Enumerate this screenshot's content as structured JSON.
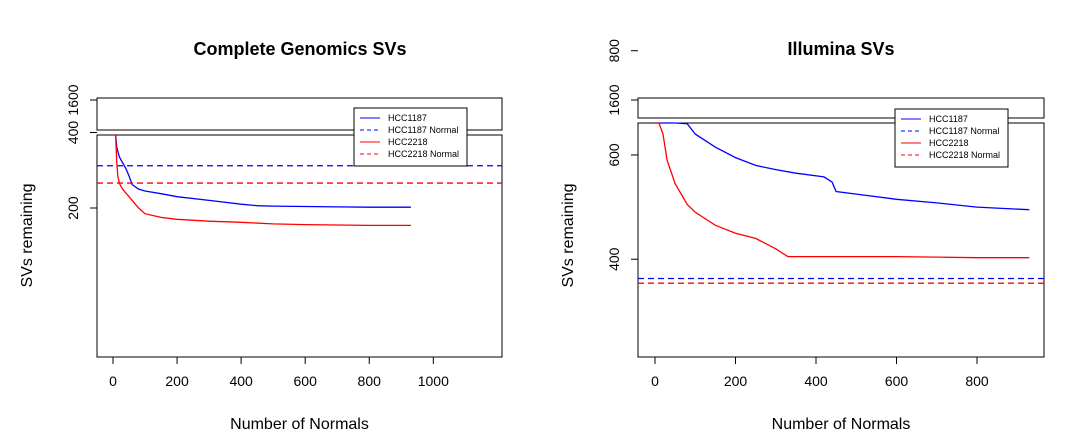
{
  "chart_data": [
    {
      "type": "line",
      "title": "Complete Genomics SVs",
      "xlabel": "Number of Normals",
      "ylabel": "SVs remaining",
      "xlim": [
        0,
        1000
      ],
      "x_ticks": [
        0,
        200,
        400,
        600,
        800,
        1000
      ],
      "y_ticks": [
        200,
        400,
        1600
      ],
      "y_break": true,
      "legend_position": "top-right",
      "series": [
        {
          "name": "HCC1187",
          "color": "#0000ff",
          "style": "solid",
          "points": [
            [
              1,
              1800
            ],
            [
              3,
              900
            ],
            [
              5,
              600
            ],
            [
              8,
              430
            ],
            [
              12,
              360
            ],
            [
              20,
              335
            ],
            [
              30,
              320
            ],
            [
              40,
              305
            ],
            [
              50,
              285
            ],
            [
              60,
              262
            ],
            [
              80,
              250
            ],
            [
              100,
              245
            ],
            [
              150,
              238
            ],
            [
              200,
              230
            ],
            [
              300,
              220
            ],
            [
              400,
              210
            ],
            [
              450,
              206
            ],
            [
              500,
              205
            ],
            [
              600,
              204
            ],
            [
              700,
              203
            ],
            [
              800,
              202
            ],
            [
              930,
              202
            ]
          ]
        },
        {
          "name": "HCC1187 Normal",
          "color": "#0000ff",
          "style": "dashed",
          "value": 312
        },
        {
          "name": "HCC2218",
          "color": "#ff0000",
          "style": "solid",
          "points": [
            [
              1,
              1800
            ],
            [
              3,
              900
            ],
            [
              5,
              550
            ],
            [
              8,
              400
            ],
            [
              12,
              320
            ],
            [
              15,
              285
            ],
            [
              20,
              265
            ],
            [
              30,
              250
            ],
            [
              50,
              230
            ],
            [
              80,
              200
            ],
            [
              100,
              185
            ],
            [
              150,
              175
            ],
            [
              200,
              170
            ],
            [
              300,
              165
            ],
            [
              400,
              162
            ],
            [
              500,
              158
            ],
            [
              600,
              156
            ],
            [
              700,
              155
            ],
            [
              800,
              154
            ],
            [
              930,
              154
            ]
          ]
        },
        {
          "name": "HCC2218 Normal",
          "color": "#ff0000",
          "style": "dashed",
          "value": 266
        }
      ]
    },
    {
      "type": "line",
      "title": "Illumina SVs",
      "xlabel": "Number of Normals",
      "ylabel": "SVs remaining",
      "xlim": [
        0,
        950
      ],
      "x_ticks": [
        0,
        200,
        400,
        600,
        800
      ],
      "y_ticks": [
        400,
        600,
        800,
        1600
      ],
      "y_break": true,
      "legend_position": "top-right",
      "series": [
        {
          "name": "HCC1187",
          "color": "#0000ff",
          "style": "solid",
          "points": [
            [
              1,
              1200
            ],
            [
              3,
              1000
            ],
            [
              5,
              930
            ],
            [
              10,
              850
            ],
            [
              20,
              780
            ],
            [
              30,
              735
            ],
            [
              50,
              690
            ],
            [
              80,
              660
            ],
            [
              100,
              640
            ],
            [
              150,
              615
            ],
            [
              200,
              595
            ],
            [
              250,
              580
            ],
            [
              300,
              572
            ],
            [
              350,
              565
            ],
            [
              420,
              558
            ],
            [
              440,
              548
            ],
            [
              450,
              530
            ],
            [
              500,
              525
            ],
            [
              600,
              515
            ],
            [
              700,
              508
            ],
            [
              800,
              500
            ],
            [
              930,
              495
            ]
          ]
        },
        {
          "name": "HCC1187 Normal",
          "color": "#0000ff",
          "style": "dashed",
          "value": 363
        },
        {
          "name": "HCC2218",
          "color": "#ff0000",
          "style": "solid",
          "points": [
            [
              1,
              1600
            ],
            [
              3,
              1000
            ],
            [
              5,
              850
            ],
            [
              10,
              740
            ],
            [
              20,
              640
            ],
            [
              30,
              590
            ],
            [
              50,
              545
            ],
            [
              80,
              505
            ],
            [
              100,
              490
            ],
            [
              150,
              465
            ],
            [
              200,
              450
            ],
            [
              250,
              440
            ],
            [
              300,
              420
            ],
            [
              330,
              405
            ],
            [
              400,
              405
            ],
            [
              500,
              405
            ],
            [
              600,
              405
            ],
            [
              700,
              404
            ],
            [
              800,
              403
            ],
            [
              930,
              403
            ]
          ]
        },
        {
          "name": "HCC2218 Normal",
          "color": "#ff0000",
          "style": "dashed",
          "value": 354
        }
      ]
    }
  ]
}
